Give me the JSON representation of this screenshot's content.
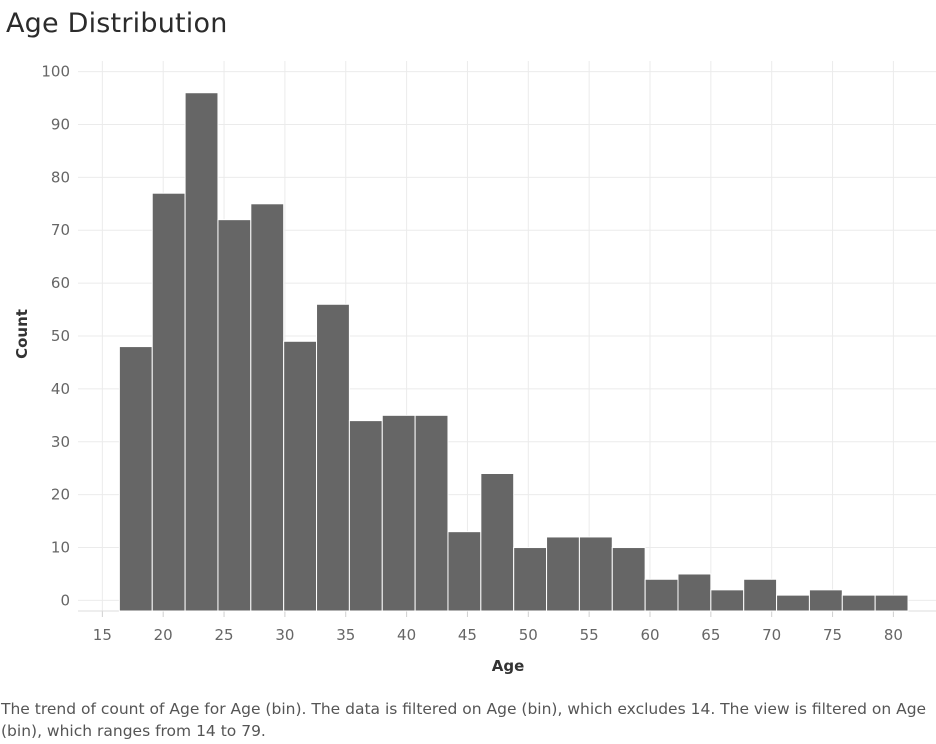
{
  "title": "Age Distribution",
  "caption": "The trend of count of Age for Age (bin). The data is filtered on Age (bin), which excludes 14. The view is filtered on Age (bin), which ranges from 14 to 79.",
  "colors": {
    "bar": "#666666",
    "bar_stroke": "#ffffff",
    "grid": "#ebebeb"
  },
  "chart_data": {
    "type": "bar",
    "title": "Age Distribution",
    "xlabel": "Age",
    "ylabel": "Count",
    "bin_width": 2.7,
    "bins": [
      {
        "start": 16.4,
        "value": 48
      },
      {
        "start": 19.1,
        "value": 77
      },
      {
        "start": 21.8,
        "value": 96
      },
      {
        "start": 24.5,
        "value": 72
      },
      {
        "start": 27.2,
        "value": 75
      },
      {
        "start": 29.9,
        "value": 49
      },
      {
        "start": 32.6,
        "value": 56
      },
      {
        "start": 35.3,
        "value": 34
      },
      {
        "start": 38.0,
        "value": 35
      },
      {
        "start": 40.7,
        "value": 35
      },
      {
        "start": 43.4,
        "value": 13
      },
      {
        "start": 46.1,
        "value": 24
      },
      {
        "start": 48.8,
        "value": 10
      },
      {
        "start": 51.5,
        "value": 12
      },
      {
        "start": 54.2,
        "value": 12
      },
      {
        "start": 56.9,
        "value": 10
      },
      {
        "start": 59.6,
        "value": 4
      },
      {
        "start": 62.3,
        "value": 5
      },
      {
        "start": 65.0,
        "value": 2
      },
      {
        "start": 67.7,
        "value": 4
      },
      {
        "start": 70.4,
        "value": 1
      },
      {
        "start": 73.1,
        "value": 2
      },
      {
        "start": 75.8,
        "value": 1
      },
      {
        "start": 78.5,
        "value": 1
      }
    ],
    "xlim": [
      13,
      83.5
    ],
    "ylim": [
      -2,
      102
    ],
    "x_ticks": [
      15,
      20,
      25,
      30,
      35,
      40,
      45,
      50,
      55,
      60,
      65,
      70,
      75,
      80
    ],
    "y_ticks": [
      0,
      10,
      20,
      30,
      40,
      50,
      60,
      70,
      80,
      90,
      100
    ],
    "grid": true
  }
}
